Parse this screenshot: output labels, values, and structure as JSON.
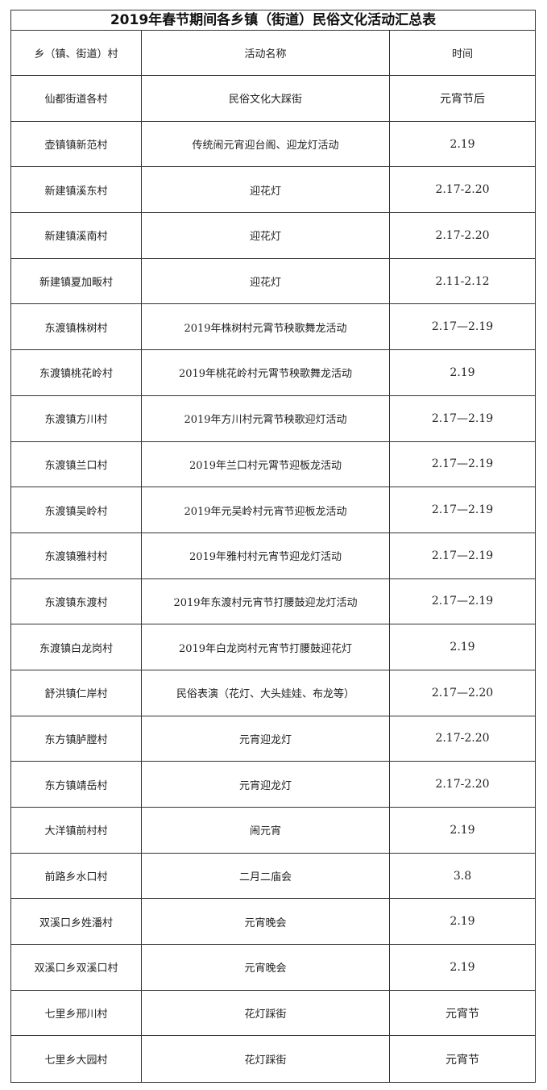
{
  "title": "2019年春节期间各乡镇（街道）民俗文化活动汇总表",
  "headers": [
    "乡（镇、街道）村",
    "活动名称",
    "时间"
  ],
  "rows": [
    [
      "仙都街道各村",
      "民俗文化大踩街",
      "元宵节后"
    ],
    [
      "壶镇镇新范村",
      "传统闹元宵迎台阁、迎龙灯活动",
      "2.19"
    ],
    [
      "新建镇溪东村",
      "迎花灯",
      "2.17-2.20"
    ],
    [
      "新建镇溪南村",
      "迎花灯",
      "2.17-2.20"
    ],
    [
      "新建镇夏加畈村",
      "迎花灯",
      "2.11-2.12"
    ],
    [
      "东渡镇株树村",
      "2019年株树村元霄节秧歌舞龙活动",
      "2.17—2.19"
    ],
    [
      "东渡镇桃花岭村",
      "2019年桃花岭村元霄节秧歌舞龙活动",
      "2.19"
    ],
    [
      "东渡镇方川村",
      "2019年方川村元霄节秧歌迎灯活动",
      "2.17—2.19"
    ],
    [
      "东渡镇兰口村",
      "2019年兰口村元霄节迎板龙活动",
      "2.17—2.19"
    ],
    [
      "东渡镇吴岭村",
      "2019年元吴岭村元宵节迎板龙活动",
      "2.17—2.19"
    ],
    [
      "东渡镇雅村村",
      "2019年雅村村元宵节迎龙灯活动",
      "2.17—2.19"
    ],
    [
      "东渡镇东渡村",
      "2019年东渡村元宵节打腰鼓迎龙灯活动",
      "2.17—2.19"
    ],
    [
      "东渡镇白龙岗村",
      "2019年白龙岗村元宵节打腰鼓迎花灯",
      "2.19"
    ],
    [
      "舒洪镇仁岸村",
      "民俗表演（花灯、大头娃娃、布龙等）",
      "2.17—2.20"
    ],
    [
      "东方镇胪膛村",
      "元宵迎龙灯",
      "2.17-2.20"
    ],
    [
      "东方镇靖岳村",
      "元宵迎龙灯",
      "2.17-2.20"
    ],
    [
      "大洋镇前村村",
      "闹元宵",
      "2.19"
    ],
    [
      "前路乡水口村",
      "二月二庙会",
      "3.8"
    ],
    [
      "双溪口乡姓潘村",
      "元宵晚会",
      "2.19"
    ],
    [
      "双溪口乡双溪口村",
      "元宵晚会",
      "2.19"
    ],
    [
      "七里乡邢川村",
      "花灯踩街",
      "元宵节"
    ],
    [
      "七里乡大园村",
      "花灯踩街",
      "元宵节"
    ]
  ]
}
